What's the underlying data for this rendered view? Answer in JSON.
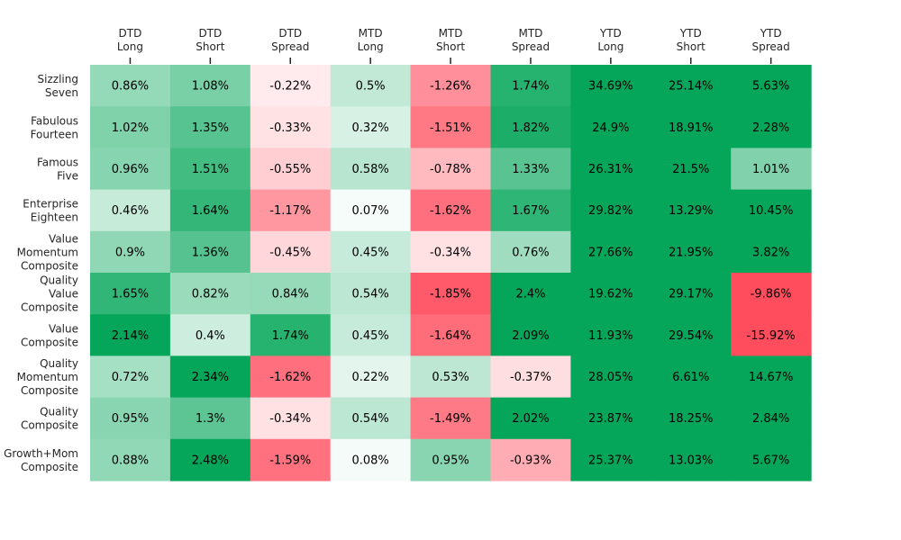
{
  "chart_data": {
    "type": "heatmap",
    "title": "",
    "xlabel": "",
    "ylabel": "",
    "columns": [
      [
        "DTD",
        "Long"
      ],
      [
        "DTD",
        "Short"
      ],
      [
        "DTD",
        "Spread"
      ],
      [
        "MTD",
        "Long"
      ],
      [
        "MTD",
        "Short"
      ],
      [
        "MTD",
        "Spread"
      ],
      [
        "YTD",
        "Long"
      ],
      [
        "YTD",
        "Short"
      ],
      [
        "YTD",
        "Spread"
      ]
    ],
    "rows": [
      [
        "Sizzling",
        "Seven"
      ],
      [
        "Fabulous",
        "Fourteen"
      ],
      [
        "Famous",
        "Five"
      ],
      [
        "Enterprise",
        "Eighteen"
      ],
      [
        "Value",
        "Momentum",
        "Composite"
      ],
      [
        "Quality",
        "Value",
        "Composite"
      ],
      [
        "Value",
        "Composite"
      ],
      [
        "Quality",
        "Momentum",
        "Composite"
      ],
      [
        "Quality",
        "Composite"
      ],
      [
        "Growth+Mom",
        "Composite"
      ]
    ],
    "values": [
      [
        0.86,
        1.08,
        -0.22,
        0.5,
        -1.26,
        1.74,
        34.69,
        25.14,
        5.63
      ],
      [
        1.02,
        1.35,
        -0.33,
        0.32,
        -1.51,
        1.82,
        24.9,
        18.91,
        2.28
      ],
      [
        0.96,
        1.51,
        -0.55,
        0.58,
        -0.78,
        1.33,
        26.31,
        21.5,
        1.01
      ],
      [
        0.46,
        1.64,
        -1.17,
        0.07,
        -1.62,
        1.67,
        29.82,
        13.29,
        10.45
      ],
      [
        0.9,
        1.36,
        -0.45,
        0.45,
        -0.34,
        0.76,
        27.66,
        21.95,
        3.82
      ],
      [
        1.65,
        0.82,
        0.84,
        0.54,
        -1.85,
        2.4,
        19.62,
        29.17,
        -9.86
      ],
      [
        2.14,
        0.4,
        1.74,
        0.45,
        -1.64,
        2.09,
        11.93,
        29.54,
        -15.92
      ],
      [
        0.72,
        2.34,
        -1.62,
        0.22,
        0.53,
        -0.37,
        28.05,
        6.61,
        14.67
      ],
      [
        0.95,
        1.3,
        -0.34,
        0.54,
        -1.49,
        2.02,
        23.87,
        18.25,
        2.84
      ],
      [
        0.88,
        2.48,
        -1.59,
        0.08,
        0.95,
        -0.93,
        25.37,
        13.03,
        5.67
      ]
    ],
    "value_suffix": "%",
    "color_scale": {
      "vmin": -2,
      "vmax": 2,
      "negative": "#ff4d5e",
      "zero": "#ffffff",
      "positive": "#06a65a"
    },
    "legend": "none",
    "grid": false
  }
}
